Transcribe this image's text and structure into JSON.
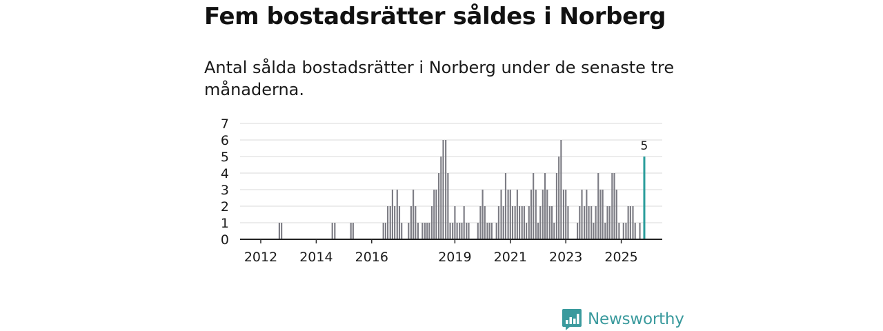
{
  "header": {
    "title": "Fem bostadsrätter såldes i Norberg",
    "subtitle": "Antal sålda bostadsrätter i Norberg under de senaste tre månaderna."
  },
  "brand": {
    "name": "Newsworthy",
    "color": "#3a9a9d"
  },
  "colors": {
    "bar": "#7c7c84",
    "highlight": "#2a9d9b",
    "grid": "#d8d8d8",
    "axis": "#222222"
  },
  "chart_data": {
    "type": "bar",
    "title": "Antal sålda bostadsrätter i Norberg",
    "xlabel": "",
    "ylabel": "",
    "ylim": [
      0,
      7
    ],
    "yticks": [
      0,
      1,
      2,
      3,
      4,
      5,
      6,
      7
    ],
    "x_start": 2011.25,
    "bar_width_years": 0.0833,
    "xticks": [
      {
        "value": 2012,
        "label": "2012"
      },
      {
        "value": 2014,
        "label": "2014"
      },
      {
        "value": 2016,
        "label": "2016"
      },
      {
        "value": 2019,
        "label": "2019"
      },
      {
        "value": 2021,
        "label": "2021"
      },
      {
        "value": 2023,
        "label": "2023"
      },
      {
        "value": 2025,
        "label": "2025"
      }
    ],
    "bars": [
      {
        "x": 2012.67,
        "value": 1
      },
      {
        "x": 2012.75,
        "value": 1
      },
      {
        "x": 2014.58,
        "value": 1
      },
      {
        "x": 2014.67,
        "value": 1
      },
      {
        "x": 2015.25,
        "value": 1
      },
      {
        "x": 2015.33,
        "value": 1
      },
      {
        "x": 2016.42,
        "value": 1
      },
      {
        "x": 2016.5,
        "value": 1
      },
      {
        "x": 2016.58,
        "value": 2
      },
      {
        "x": 2016.67,
        "value": 2
      },
      {
        "x": 2016.75,
        "value": 3
      },
      {
        "x": 2016.83,
        "value": 2
      },
      {
        "x": 2016.92,
        "value": 3
      },
      {
        "x": 2017.0,
        "value": 2
      },
      {
        "x": 2017.08,
        "value": 1
      },
      {
        "x": 2017.33,
        "value": 1
      },
      {
        "x": 2017.42,
        "value": 2
      },
      {
        "x": 2017.5,
        "value": 3
      },
      {
        "x": 2017.58,
        "value": 2
      },
      {
        "x": 2017.67,
        "value": 1
      },
      {
        "x": 2017.83,
        "value": 1
      },
      {
        "x": 2017.92,
        "value": 1
      },
      {
        "x": 2018.0,
        "value": 1
      },
      {
        "x": 2018.08,
        "value": 1
      },
      {
        "x": 2018.17,
        "value": 2
      },
      {
        "x": 2018.25,
        "value": 3
      },
      {
        "x": 2018.33,
        "value": 3
      },
      {
        "x": 2018.42,
        "value": 4
      },
      {
        "x": 2018.5,
        "value": 5
      },
      {
        "x": 2018.58,
        "value": 6
      },
      {
        "x": 2018.67,
        "value": 6
      },
      {
        "x": 2018.75,
        "value": 4
      },
      {
        "x": 2018.83,
        "value": 1
      },
      {
        "x": 2018.92,
        "value": 1
      },
      {
        "x": 2019.0,
        "value": 2
      },
      {
        "x": 2019.08,
        "value": 1
      },
      {
        "x": 2019.17,
        "value": 1
      },
      {
        "x": 2019.25,
        "value": 1
      },
      {
        "x": 2019.33,
        "value": 2
      },
      {
        "x": 2019.42,
        "value": 1
      },
      {
        "x": 2019.5,
        "value": 1
      },
      {
        "x": 2019.83,
        "value": 1
      },
      {
        "x": 2019.92,
        "value": 2
      },
      {
        "x": 2020.0,
        "value": 3
      },
      {
        "x": 2020.08,
        "value": 2
      },
      {
        "x": 2020.17,
        "value": 1
      },
      {
        "x": 2020.25,
        "value": 1
      },
      {
        "x": 2020.33,
        "value": 1
      },
      {
        "x": 2020.5,
        "value": 1
      },
      {
        "x": 2020.58,
        "value": 2
      },
      {
        "x": 2020.67,
        "value": 3
      },
      {
        "x": 2020.75,
        "value": 2
      },
      {
        "x": 2020.83,
        "value": 4
      },
      {
        "x": 2020.92,
        "value": 3
      },
      {
        "x": 2021.0,
        "value": 3
      },
      {
        "x": 2021.08,
        "value": 2
      },
      {
        "x": 2021.17,
        "value": 2
      },
      {
        "x": 2021.25,
        "value": 3
      },
      {
        "x": 2021.33,
        "value": 2
      },
      {
        "x": 2021.42,
        "value": 2
      },
      {
        "x": 2021.5,
        "value": 2
      },
      {
        "x": 2021.58,
        "value": 1
      },
      {
        "x": 2021.67,
        "value": 2
      },
      {
        "x": 2021.75,
        "value": 3
      },
      {
        "x": 2021.83,
        "value": 4
      },
      {
        "x": 2021.92,
        "value": 3
      },
      {
        "x": 2022.0,
        "value": 1
      },
      {
        "x": 2022.08,
        "value": 2
      },
      {
        "x": 2022.17,
        "value": 3
      },
      {
        "x": 2022.25,
        "value": 4
      },
      {
        "x": 2022.33,
        "value": 3
      },
      {
        "x": 2022.42,
        "value": 2
      },
      {
        "x": 2022.5,
        "value": 2
      },
      {
        "x": 2022.58,
        "value": 1
      },
      {
        "x": 2022.67,
        "value": 4
      },
      {
        "x": 2022.75,
        "value": 5
      },
      {
        "x": 2022.83,
        "value": 6
      },
      {
        "x": 2022.92,
        "value": 3
      },
      {
        "x": 2023.0,
        "value": 3
      },
      {
        "x": 2023.08,
        "value": 2
      },
      {
        "x": 2023.42,
        "value": 1
      },
      {
        "x": 2023.5,
        "value": 2
      },
      {
        "x": 2023.58,
        "value": 3
      },
      {
        "x": 2023.67,
        "value": 2
      },
      {
        "x": 2023.75,
        "value": 3
      },
      {
        "x": 2023.83,
        "value": 2
      },
      {
        "x": 2023.92,
        "value": 2
      },
      {
        "x": 2024.0,
        "value": 1
      },
      {
        "x": 2024.08,
        "value": 2
      },
      {
        "x": 2024.17,
        "value": 4
      },
      {
        "x": 2024.25,
        "value": 3
      },
      {
        "x": 2024.33,
        "value": 3
      },
      {
        "x": 2024.42,
        "value": 1
      },
      {
        "x": 2024.5,
        "value": 2
      },
      {
        "x": 2024.58,
        "value": 2
      },
      {
        "x": 2024.67,
        "value": 4
      },
      {
        "x": 2024.75,
        "value": 4
      },
      {
        "x": 2024.83,
        "value": 3
      },
      {
        "x": 2024.92,
        "value": 1
      },
      {
        "x": 2025.08,
        "value": 1
      },
      {
        "x": 2025.17,
        "value": 1
      },
      {
        "x": 2025.25,
        "value": 2
      },
      {
        "x": 2025.33,
        "value": 2
      },
      {
        "x": 2025.42,
        "value": 2
      },
      {
        "x": 2025.5,
        "value": 1
      },
      {
        "x": 2025.67,
        "value": 1
      }
    ],
    "highlight": {
      "x": 2025.83,
      "value": 5,
      "label": "5"
    }
  }
}
